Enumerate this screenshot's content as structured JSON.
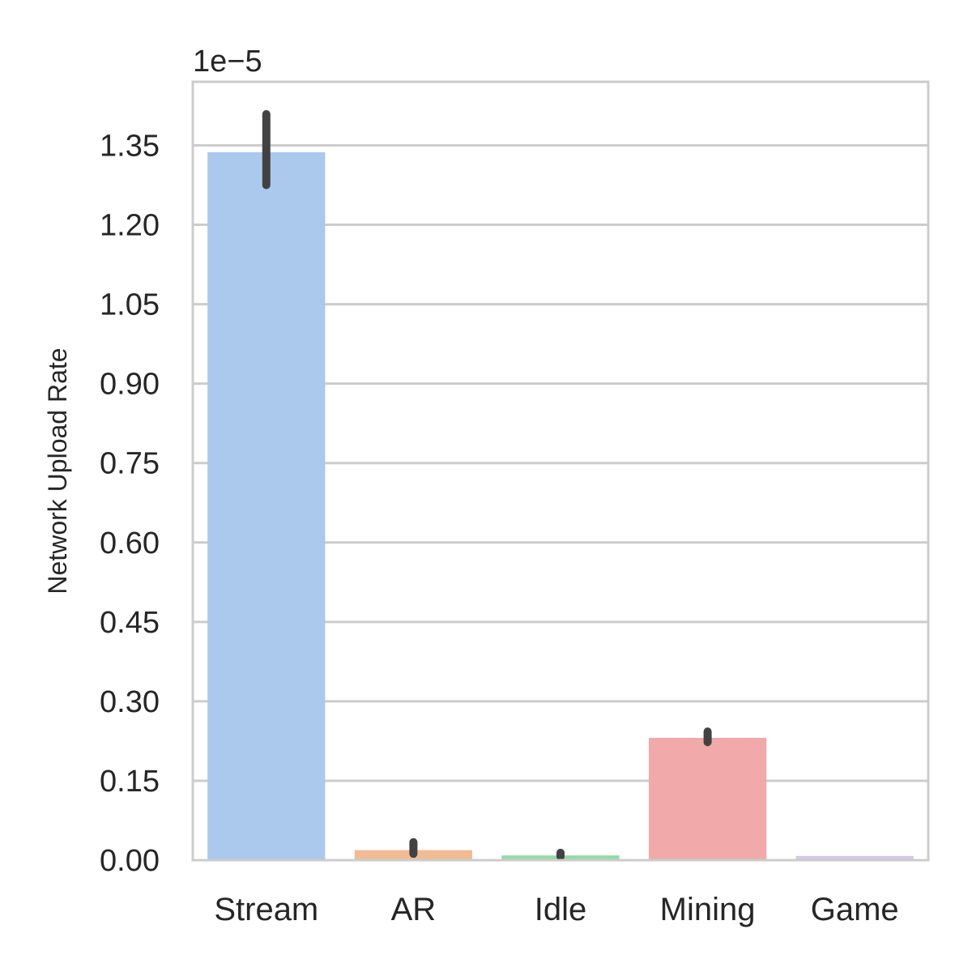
{
  "chart_data": {
    "type": "bar",
    "title": "",
    "xlabel": "",
    "ylabel": "Network Upload Rate",
    "y_offset_text": "1e−5",
    "y_scale_exponent": -5,
    "ylim": [
      0,
      1.47
    ],
    "yticks": [
      "0.00",
      "0.15",
      "0.30",
      "0.45",
      "0.60",
      "0.75",
      "0.90",
      "1.05",
      "1.20",
      "1.35"
    ],
    "ytick_values": [
      0,
      0.15,
      0.3,
      0.45,
      0.6,
      0.75,
      0.9,
      1.05,
      1.2,
      1.35
    ],
    "grid": true,
    "categories": [
      "Stream",
      "AR",
      "Idle",
      "Mining",
      "Game"
    ],
    "values": [
      1.337,
      0.019,
      0.009,
      0.231,
      0.008
    ],
    "error_low": [
      1.275,
      0.012,
      0.007,
      0.223,
      0.008
    ],
    "error_high": [
      1.409,
      0.034,
      0.014,
      0.243,
      0.008
    ],
    "colors": [
      "#abc9ec",
      "#f1bb94",
      "#95dba6",
      "#f1a9a9",
      "#d2c7ea"
    ],
    "error_color": "#424242",
    "grid_color": "#cccccc"
  }
}
